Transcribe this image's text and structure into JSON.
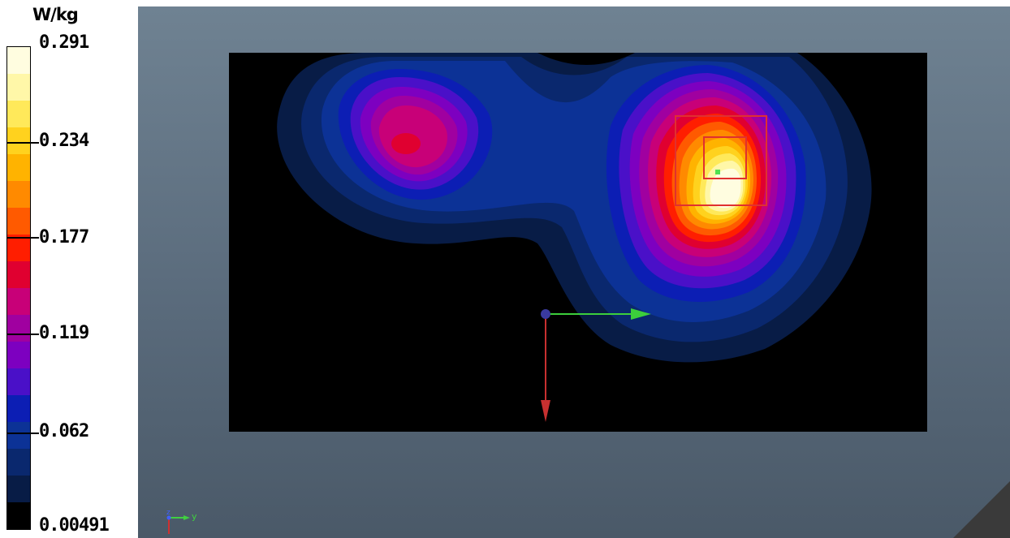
{
  "legend": {
    "unit": "W/kg",
    "ticks": [
      "0.291",
      "0.234",
      "0.177",
      "0.119",
      "0.062",
      "0.00491"
    ],
    "colors": [
      "#fffde0",
      "#fff7a8",
      "#ffe95a",
      "#ffd21e",
      "#ffb300",
      "#ff8a00",
      "#ff5a00",
      "#ff1e00",
      "#e00030",
      "#c80078",
      "#a000a0",
      "#7d00c0",
      "#4a10c8",
      "#0c1eb4",
      "#0c3296",
      "#0a286e",
      "#081c46",
      "#000000"
    ]
  },
  "viewport": {
    "triad_label_y": "y",
    "triad_label_z": "z"
  }
}
